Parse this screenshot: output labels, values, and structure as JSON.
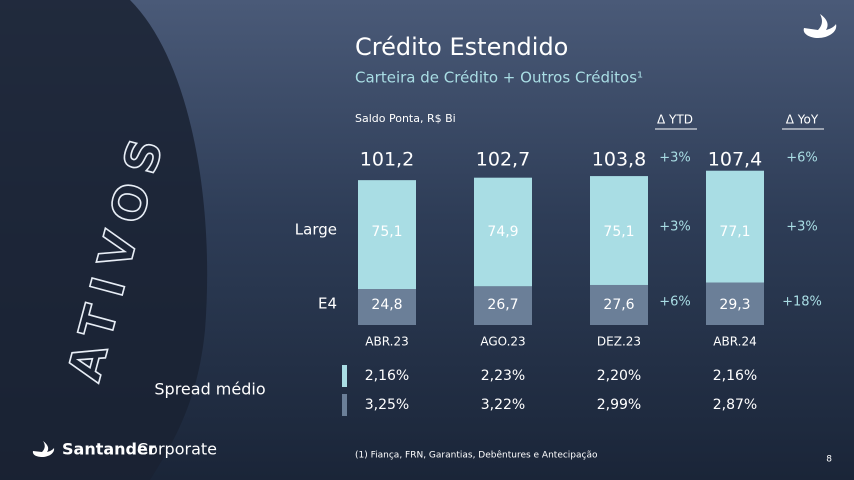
{
  "chart_data": {
    "type": "bar",
    "stacked": true,
    "title": "Crédito Estendido",
    "subtitle": "Carteira de Crédito + Outros Créditos¹",
    "unit_label": "Saldo Ponta, R$ Bi",
    "categories": [
      "ABR.23",
      "AGO.23",
      "DEZ.23",
      "ABR.24"
    ],
    "series": [
      {
        "name": "E4",
        "color": "#6b7f98",
        "values": [
          24.8,
          26.7,
          27.6,
          29.3
        ],
        "value_labels": [
          "24,8",
          "26,7",
          "27,6",
          "29,3"
        ]
      },
      {
        "name": "Large",
        "color": "#a9dde4",
        "values": [
          75.1,
          74.9,
          75.1,
          77.1
        ],
        "value_labels": [
          "75,1",
          "74,9",
          "75,1",
          "77,1"
        ]
      }
    ],
    "totals": {
      "values": [
        101.2,
        102.7,
        103.8,
        107.4
      ],
      "value_labels": [
        "101,2",
        "102,7",
        "103,8",
        "107,4"
      ]
    },
    "ytd": {
      "title": "Δ YTD",
      "values": [
        3,
        3,
        6
      ],
      "value_labels": [
        "+3%",
        "+3%",
        "+6%"
      ]
    },
    "yoy": {
      "title": "Δ YoY",
      "values": [
        6,
        3,
        18
      ],
      "value_labels": [
        "+6%",
        "+3%",
        "+18%"
      ]
    },
    "spread": {
      "title": "Spread médio",
      "rows": [
        {
          "color": "#a9dde4",
          "values": [
            2.16,
            2.23,
            2.2,
            2.16
          ],
          "value_labels": [
            "2,16%",
            "2,23%",
            "2,20%",
            "2,16%"
          ]
        },
        {
          "color": "#6b7f98",
          "values": [
            3.25,
            3.22,
            2.99,
            2.87
          ],
          "value_labels": [
            "3,25%",
            "3,22%",
            "2,99%",
            "2,87%"
          ]
        }
      ]
    },
    "side_word": "ATIVOS",
    "brand": {
      "name": "Santander",
      "suffix": "Corporate"
    },
    "footnote": "(1) Fiança, FRN, Garantias, Debêntures e Antecipação",
    "page_number": "8"
  }
}
